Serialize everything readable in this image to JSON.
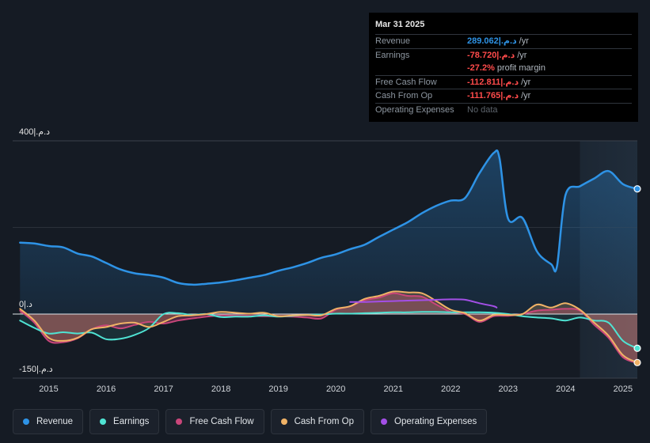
{
  "tooltip": {
    "date": "Mar 31 2025",
    "revenue_label": "Revenue",
    "revenue_value": "289.062|.ﺩ.ﻡ",
    "revenue_unit": "/yr",
    "earnings_label": "Earnings",
    "earnings_value": "-78.720|.ﺩ.ﻡ",
    "earnings_unit": "/yr",
    "margin_value": "-27.2%",
    "margin_text": "profit margin",
    "fcf_label": "Free Cash Flow",
    "fcf_value": "-112.811|.ﺩ.ﻡ",
    "fcf_unit": "/yr",
    "cfo_label": "Cash From Op",
    "cfo_value": "-111.765|.ﺩ.ﻡ",
    "cfo_unit": "/yr",
    "opex_label": "Operating Expenses",
    "opex_value": "No data"
  },
  "legend": [
    {
      "label": "Revenue",
      "color": "#2e93e6"
    },
    {
      "label": "Earnings",
      "color": "#4fe3d3"
    },
    {
      "label": "Free Cash Flow",
      "color": "#c9467a"
    },
    {
      "label": "Cash From Op",
      "color": "#f0b266"
    },
    {
      "label": "Operating Expenses",
      "color": "#a34fe6"
    }
  ],
  "chart_data": {
    "type": "line",
    "title": "",
    "y_axis_labels": {
      "top": "400|.ﺩ.ﻡ",
      "zero": "0|.ﺩ",
      "bottom": "-150|.ﺩ.ﻡ"
    },
    "ylim": [
      -150,
      400
    ],
    "xlim": [
      2014.4,
      2025.25
    ],
    "x_ticks": [
      "2015",
      "2016",
      "2017",
      "2018",
      "2019",
      "2020",
      "2021",
      "2022",
      "2023",
      "2024",
      "2025"
    ],
    "forecast_shade_start": 2024.25,
    "series": [
      {
        "name": "Revenue",
        "color": "#2e93e6",
        "points": [
          [
            2014.5,
            165
          ],
          [
            2014.75,
            163
          ],
          [
            2015.0,
            157
          ],
          [
            2015.25,
            154
          ],
          [
            2015.5,
            140
          ],
          [
            2015.75,
            133
          ],
          [
            2016.0,
            118
          ],
          [
            2016.25,
            103
          ],
          [
            2016.5,
            94
          ],
          [
            2016.75,
            90
          ],
          [
            2017.0,
            84
          ],
          [
            2017.25,
            72
          ],
          [
            2017.5,
            68
          ],
          [
            2017.75,
            70
          ],
          [
            2018.0,
            73
          ],
          [
            2018.25,
            78
          ],
          [
            2018.5,
            84
          ],
          [
            2018.75,
            90
          ],
          [
            2019.0,
            100
          ],
          [
            2019.25,
            108
          ],
          [
            2019.5,
            118
          ],
          [
            2019.75,
            130
          ],
          [
            2020.0,
            138
          ],
          [
            2020.25,
            150
          ],
          [
            2020.5,
            160
          ],
          [
            2020.75,
            178
          ],
          [
            2021.0,
            195
          ],
          [
            2021.25,
            212
          ],
          [
            2021.5,
            233
          ],
          [
            2021.75,
            250
          ],
          [
            2022.0,
            262
          ],
          [
            2022.25,
            268
          ],
          [
            2022.5,
            325
          ],
          [
            2022.75,
            372
          ],
          [
            2022.85,
            360
          ],
          [
            2023.0,
            220
          ],
          [
            2023.25,
            222
          ],
          [
            2023.5,
            145
          ],
          [
            2023.75,
            115
          ],
          [
            2023.85,
            110
          ],
          [
            2024.0,
            275
          ],
          [
            2024.25,
            295
          ],
          [
            2024.5,
            313
          ],
          [
            2024.75,
            330
          ],
          [
            2025.0,
            300
          ],
          [
            2025.25,
            289
          ]
        ]
      },
      {
        "name": "Earnings",
        "color": "#4fe3d3",
        "points": [
          [
            2014.5,
            -15
          ],
          [
            2014.75,
            -32
          ],
          [
            2015.0,
            -45
          ],
          [
            2015.25,
            -42
          ],
          [
            2015.5,
            -45
          ],
          [
            2015.75,
            -43
          ],
          [
            2016.0,
            -58
          ],
          [
            2016.25,
            -57
          ],
          [
            2016.5,
            -48
          ],
          [
            2016.75,
            -32
          ],
          [
            2017.0,
            0
          ],
          [
            2017.25,
            2
          ],
          [
            2017.5,
            -2
          ],
          [
            2017.75,
            0
          ],
          [
            2018.0,
            -7
          ],
          [
            2018.25,
            -6
          ],
          [
            2018.5,
            -6
          ],
          [
            2018.75,
            -3
          ],
          [
            2019.0,
            -6
          ],
          [
            2019.25,
            -4
          ],
          [
            2019.5,
            -2
          ],
          [
            2019.75,
            -1
          ],
          [
            2020.0,
            1
          ],
          [
            2020.25,
            1
          ],
          [
            2020.5,
            2
          ],
          [
            2020.75,
            3
          ],
          [
            2021.0,
            4
          ],
          [
            2021.25,
            4
          ],
          [
            2021.5,
            5
          ],
          [
            2021.75,
            5
          ],
          [
            2022.0,
            4
          ],
          [
            2022.25,
            4
          ],
          [
            2022.5,
            4
          ],
          [
            2022.75,
            3
          ],
          [
            2023.0,
            0
          ],
          [
            2023.25,
            -5
          ],
          [
            2023.5,
            -8
          ],
          [
            2023.75,
            -10
          ],
          [
            2024.0,
            -15
          ],
          [
            2024.25,
            -8
          ],
          [
            2024.5,
            -15
          ],
          [
            2024.75,
            -20
          ],
          [
            2025.0,
            -62
          ],
          [
            2025.25,
            -79
          ]
        ]
      },
      {
        "name": "Free Cash Flow",
        "color": "#c9467a",
        "points": [
          [
            2014.5,
            8
          ],
          [
            2014.75,
            -20
          ],
          [
            2015.0,
            -62
          ],
          [
            2015.25,
            -65
          ],
          [
            2015.5,
            -56
          ],
          [
            2015.75,
            -35
          ],
          [
            2016.0,
            -26
          ],
          [
            2016.25,
            -33
          ],
          [
            2016.5,
            -25
          ],
          [
            2016.75,
            -18
          ],
          [
            2017.0,
            -22
          ],
          [
            2017.25,
            -15
          ],
          [
            2017.5,
            -10
          ],
          [
            2017.75,
            -6
          ],
          [
            2018.0,
            -3
          ],
          [
            2018.25,
            -4
          ],
          [
            2018.5,
            -4
          ],
          [
            2018.75,
            -5
          ],
          [
            2019.0,
            -5
          ],
          [
            2019.25,
            -6
          ],
          [
            2019.5,
            -8
          ],
          [
            2019.75,
            -10
          ],
          [
            2020.0,
            10
          ],
          [
            2020.25,
            18
          ],
          [
            2020.5,
            32
          ],
          [
            2020.75,
            38
          ],
          [
            2021.0,
            48
          ],
          [
            2021.25,
            42
          ],
          [
            2021.5,
            40
          ],
          [
            2021.75,
            22
          ],
          [
            2022.0,
            5
          ],
          [
            2022.25,
            0
          ],
          [
            2022.5,
            -18
          ],
          [
            2022.75,
            -5
          ],
          [
            2023.0,
            -4
          ],
          [
            2023.25,
            0
          ],
          [
            2023.5,
            8
          ],
          [
            2023.75,
            10
          ],
          [
            2024.0,
            12
          ],
          [
            2024.25,
            8
          ],
          [
            2024.5,
            -25
          ],
          [
            2024.75,
            -55
          ],
          [
            2025.0,
            -100
          ],
          [
            2025.25,
            -113
          ]
        ]
      },
      {
        "name": "Cash From Op",
        "color": "#f0b266",
        "points": [
          [
            2014.5,
            12
          ],
          [
            2014.75,
            -15
          ],
          [
            2015.0,
            -55
          ],
          [
            2015.25,
            -62
          ],
          [
            2015.5,
            -55
          ],
          [
            2015.75,
            -35
          ],
          [
            2016.0,
            -30
          ],
          [
            2016.25,
            -22
          ],
          [
            2016.5,
            -20
          ],
          [
            2016.75,
            -30
          ],
          [
            2017.0,
            -18
          ],
          [
            2017.25,
            -5
          ],
          [
            2017.5,
            -3
          ],
          [
            2017.75,
            0
          ],
          [
            2018.0,
            5
          ],
          [
            2018.25,
            3
          ],
          [
            2018.5,
            1
          ],
          [
            2018.75,
            3
          ],
          [
            2019.0,
            -5
          ],
          [
            2019.25,
            -3
          ],
          [
            2019.5,
            -2
          ],
          [
            2019.75,
            -3
          ],
          [
            2020.0,
            12
          ],
          [
            2020.25,
            18
          ],
          [
            2020.5,
            35
          ],
          [
            2020.75,
            42
          ],
          [
            2021.0,
            52
          ],
          [
            2021.25,
            50
          ],
          [
            2021.5,
            48
          ],
          [
            2021.75,
            30
          ],
          [
            2022.0,
            10
          ],
          [
            2022.25,
            2
          ],
          [
            2022.5,
            -15
          ],
          [
            2022.75,
            -2
          ],
          [
            2023.0,
            -2
          ],
          [
            2023.25,
            0
          ],
          [
            2023.5,
            22
          ],
          [
            2023.75,
            15
          ],
          [
            2024.0,
            25
          ],
          [
            2024.25,
            10
          ],
          [
            2024.5,
            -20
          ],
          [
            2024.75,
            -50
          ],
          [
            2025.0,
            -95
          ],
          [
            2025.25,
            -112
          ]
        ]
      },
      {
        "name": "Operating Expenses",
        "color": "#a34fe6",
        "points": [
          [
            2020.25,
            28
          ],
          [
            2020.5,
            28
          ],
          [
            2020.75,
            29
          ],
          [
            2021.0,
            30
          ],
          [
            2021.25,
            31
          ],
          [
            2021.5,
            32
          ],
          [
            2021.75,
            33
          ],
          [
            2022.0,
            34
          ],
          [
            2022.25,
            33
          ],
          [
            2022.5,
            25
          ],
          [
            2022.75,
            18
          ],
          [
            2022.8,
            15
          ]
        ]
      }
    ]
  }
}
